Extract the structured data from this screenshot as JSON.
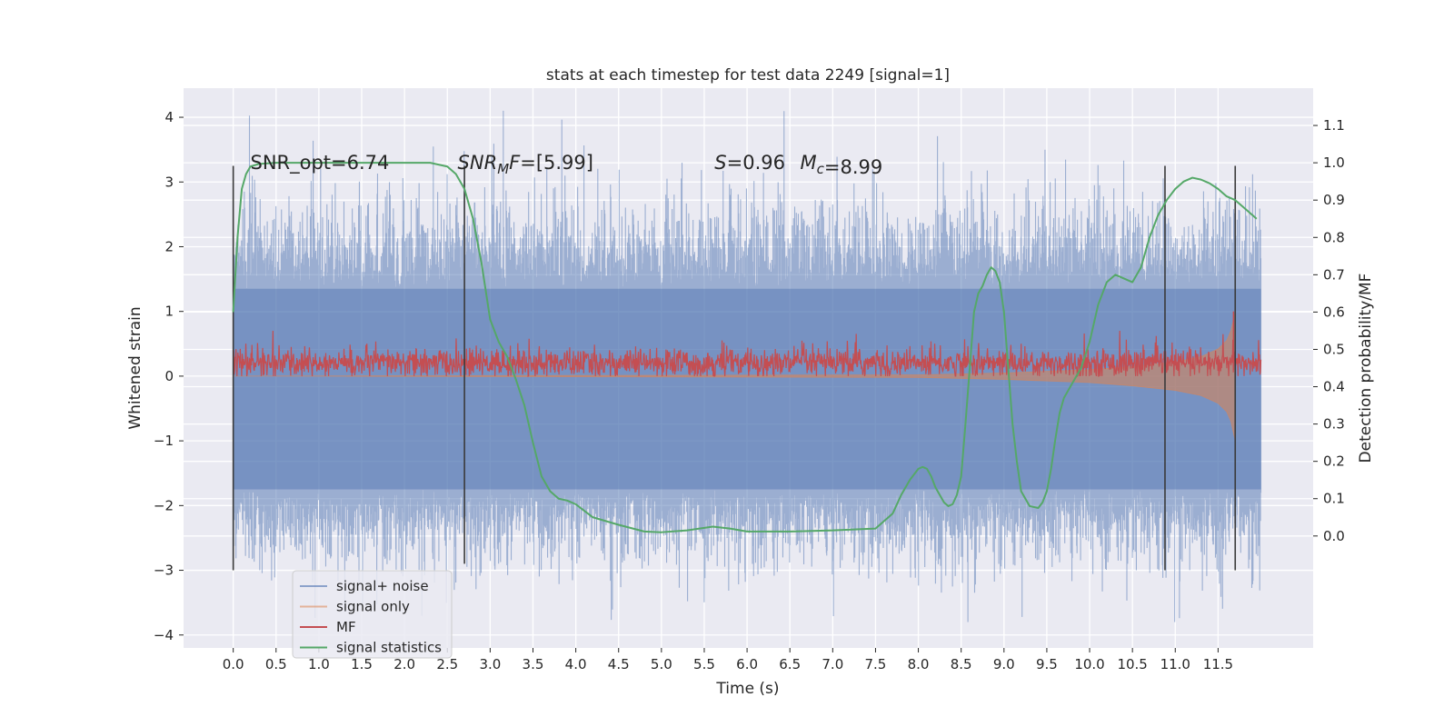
{
  "chart_data": {
    "type": "line",
    "title": "stats at each timestep for test data 2249 [signal=1]",
    "xlabel": "Time (s)",
    "ylabel": "Whitened strain",
    "y2label": "Detection probability/MF",
    "xlim": [
      -0.58,
      12.61
    ],
    "ylim": [
      -4.2,
      4.45
    ],
    "y2lim": [
      -0.3,
      1.2
    ],
    "xticks": [
      0.0,
      0.5,
      1.0,
      1.5,
      2.0,
      2.5,
      3.0,
      3.5,
      4.0,
      4.5,
      5.0,
      5.5,
      6.0,
      6.5,
      7.0,
      7.5,
      8.0,
      8.5,
      9.0,
      9.5,
      10.0,
      10.5,
      11.0,
      11.5
    ],
    "xtick_labels": [
      "0.0",
      "0.5",
      "1.0",
      "1.5",
      "2.0",
      "2.5",
      "3.0",
      "3.5",
      "4.0",
      "4.5",
      "5.0",
      "5.5",
      "6.0",
      "6.5",
      "7.0",
      "7.5",
      "8.0",
      "8.5",
      "9.0",
      "9.5",
      "10.0",
      "10.5",
      "11.0",
      "11.5"
    ],
    "yticks": [
      -4,
      -3,
      -2,
      -1,
      0,
      1,
      2,
      3,
      4
    ],
    "ytick_labels": [
      "−4",
      "−3",
      "−2",
      "−1",
      "0",
      "1",
      "2",
      "3",
      "4"
    ],
    "y2ticks": [
      0.0,
      0.1,
      0.2,
      0.3,
      0.4,
      0.5,
      0.6,
      0.7,
      0.8,
      0.9,
      1.0,
      1.1
    ],
    "y2tick_labels": [
      "0.0",
      "0.1",
      "0.2",
      "0.3",
      "0.4",
      "0.5",
      "0.6",
      "0.7",
      "0.8",
      "0.9",
      "1.0",
      "1.1"
    ],
    "grid": true,
    "legend_position": "lower-left",
    "annotations": [
      {
        "text": "SNR_opt=6.74",
        "x": 0.2,
        "y": 3.3
      },
      {
        "text": "SNR_MF=[5.99]",
        "x": 2.62,
        "y": 3.3
      },
      {
        "text": "S=0.96",
        "x": 5.62,
        "y": 3.3
      },
      {
        "text": "M_c=8.99",
        "x": 6.62,
        "y": 3.3
      }
    ],
    "vertical_lines": [
      {
        "x": 0.0,
        "ymin": -3.0,
        "ymax": 3.25
      },
      {
        "x": 2.7,
        "ymin": -2.9,
        "ymax": 3.25
      },
      {
        "x": 10.88,
        "ymin": -3.0,
        "ymax": 3.25
      },
      {
        "x": 11.7,
        "ymin": -3.0,
        "ymax": 3.25
      }
    ],
    "series": [
      {
        "name": "signal+ noise",
        "color": "#4c72b0",
        "axis": "left",
        "description_values": {
          "x_start": 0.0,
          "x_end": 12.0,
          "envelope_typical": [
            -1.8,
            2.0
          ],
          "peaks": [
            4.1,
            -3.8
          ]
        }
      },
      {
        "name": "signal only",
        "color": "#dd8452",
        "axis": "left",
        "x": [
          0.0,
          8.0,
          9.0,
          10.0,
          10.5,
          11.0,
          11.3,
          11.5,
          11.6,
          11.65,
          11.7
        ],
        "y_lower": [
          0.0,
          -0.02,
          -0.05,
          -0.1,
          -0.15,
          -0.22,
          -0.3,
          -0.42,
          -0.55,
          -0.7,
          -1.0
        ],
        "y_upper": [
          0.0,
          0.02,
          0.05,
          0.1,
          0.15,
          0.22,
          0.3,
          0.42,
          0.55,
          0.7,
          1.0
        ]
      },
      {
        "name": "MF",
        "color": "#c44e52",
        "axis": "left",
        "description_values": {
          "baseline": 0.2,
          "range": [
            0.0,
            0.7
          ],
          "spike_x": 11.68,
          "spike_y": 1.0
        }
      },
      {
        "name": "signal statistics",
        "color": "#55a868",
        "axis": "right",
        "x": [
          0.0,
          0.05,
          0.1,
          0.15,
          0.2,
          0.3,
          0.5,
          1.0,
          1.5,
          2.0,
          2.3,
          2.5,
          2.6,
          2.7,
          2.8,
          2.9,
          3.0,
          3.1,
          3.2,
          3.3,
          3.4,
          3.5,
          3.6,
          3.7,
          3.8,
          3.9,
          4.0,
          4.2,
          4.5,
          4.8,
          5.0,
          5.3,
          5.6,
          5.8,
          6.0,
          6.5,
          7.0,
          7.5,
          7.7,
          7.8,
          7.9,
          8.0,
          8.05,
          8.1,
          8.15,
          8.2,
          8.3,
          8.35,
          8.4,
          8.45,
          8.5,
          8.55,
          8.6,
          8.65,
          8.7,
          8.75,
          8.8,
          8.85,
          8.9,
          8.95,
          9.0,
          9.05,
          9.1,
          9.15,
          9.2,
          9.3,
          9.4,
          9.45,
          9.5,
          9.55,
          9.6,
          9.65,
          9.7,
          9.8,
          9.9,
          10.0,
          10.1,
          10.2,
          10.3,
          10.4,
          10.5,
          10.6,
          10.7,
          10.8,
          10.9,
          11.0,
          11.1,
          11.2,
          11.3,
          11.4,
          11.5,
          11.6,
          11.7,
          11.8,
          11.9,
          11.95
        ],
        "y": [
          0.6,
          0.8,
          0.93,
          0.97,
          0.99,
          0.997,
          1.0,
          1.0,
          1.0,
          1.0,
          1.0,
          0.99,
          0.97,
          0.93,
          0.85,
          0.73,
          0.58,
          0.52,
          0.48,
          0.42,
          0.35,
          0.25,
          0.16,
          0.12,
          0.1,
          0.095,
          0.085,
          0.05,
          0.03,
          0.012,
          0.01,
          0.015,
          0.025,
          0.02,
          0.012,
          0.012,
          0.015,
          0.02,
          0.06,
          0.11,
          0.15,
          0.18,
          0.185,
          0.18,
          0.16,
          0.13,
          0.09,
          0.08,
          0.085,
          0.11,
          0.16,
          0.3,
          0.45,
          0.6,
          0.65,
          0.67,
          0.7,
          0.72,
          0.71,
          0.68,
          0.6,
          0.45,
          0.3,
          0.2,
          0.12,
          0.08,
          0.075,
          0.09,
          0.12,
          0.18,
          0.26,
          0.33,
          0.37,
          0.41,
          0.45,
          0.52,
          0.62,
          0.68,
          0.7,
          0.69,
          0.68,
          0.72,
          0.8,
          0.86,
          0.9,
          0.93,
          0.95,
          0.96,
          0.955,
          0.945,
          0.93,
          0.91,
          0.9,
          0.88,
          0.86,
          0.85
        ]
      }
    ]
  }
}
